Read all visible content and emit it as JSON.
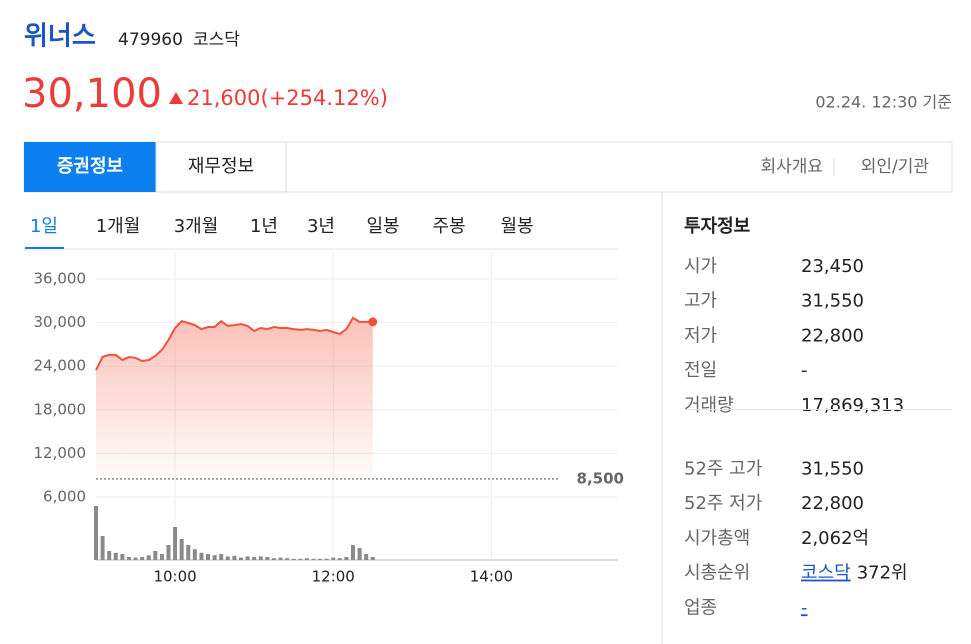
{
  "header": {
    "name": "위너스",
    "code": "479960",
    "market": "코스닥"
  },
  "price": {
    "current": "30,100",
    "change": "21,600(+254.12%)",
    "timestamp": "02.24. 12:30 기준"
  },
  "tabs": [
    "증권정보",
    "재무정보"
  ],
  "links": [
    "회사개요",
    "외인/기관"
  ],
  "period_tabs": {
    "items": [
      "1일",
      "1개월",
      "3개월",
      "1년",
      "3년",
      "일봉",
      "주봉",
      "월봉"
    ],
    "active": 0
  },
  "chart_data": {
    "type": "line",
    "color": "#f0533b",
    "x": [
      "09:00",
      "09:05",
      "09:10",
      "09:15",
      "09:20",
      "09:25",
      "09:30",
      "09:35",
      "09:40",
      "09:45",
      "09:50",
      "09:55",
      "10:00",
      "10:05",
      "10:10",
      "10:15",
      "10:20",
      "10:25",
      "10:30",
      "10:35",
      "10:40",
      "10:45",
      "10:50",
      "10:55",
      "11:00",
      "11:05",
      "11:10",
      "11:15",
      "11:20",
      "11:25",
      "11:30",
      "11:35",
      "11:40",
      "11:45",
      "11:50",
      "11:55",
      "12:00",
      "12:05",
      "12:10",
      "12:15",
      "12:20",
      "12:25",
      "12:30"
    ],
    "values": [
      23450,
      25300,
      25550,
      25550,
      24850,
      25250,
      25150,
      24700,
      24850,
      25400,
      26250,
      27600,
      29250,
      30200,
      29950,
      29650,
      29100,
      29400,
      29400,
      30200,
      29550,
      29650,
      29800,
      29550,
      28850,
      29250,
      29100,
      29400,
      29250,
      29250,
      29100,
      29000,
      29100,
      29000,
      28850,
      29000,
      28700,
      28450,
      29100,
      30650,
      30100,
      30100,
      30100
    ],
    "volume": [
      90,
      40,
      15,
      12,
      10,
      5,
      4,
      5,
      8,
      15,
      10,
      25,
      55,
      35,
      25,
      18,
      12,
      10,
      8,
      10,
      6,
      7,
      4,
      6,
      5,
      6,
      5,
      3,
      4,
      3,
      2,
      2,
      3,
      2,
      2,
      2,
      4,
      3,
      5,
      25,
      20,
      10,
      5
    ],
    "volume_ylim": [
      0,
      100
    ],
    "xlim": [
      "09:00",
      "15:30"
    ],
    "xticks": [
      "10:00",
      "12:00",
      "14:00"
    ],
    "ylim": [
      6000,
      36000
    ],
    "yticks": [
      {
        "value": 6000,
        "label": "6,000"
      },
      {
        "value": 12000,
        "label": "12,000"
      },
      {
        "value": 18000,
        "label": "18,000"
      },
      {
        "value": 24000,
        "label": "24,000"
      },
      {
        "value": 30000,
        "label": "30,000"
      },
      {
        "value": 36000,
        "label": "36,000"
      }
    ],
    "reference": {
      "value": 8500,
      "label": "8,500"
    },
    "grid": true
  },
  "info": {
    "title": "투자정보",
    "groups": [
      [
        {
          "label": "시가",
          "value": "23,450"
        },
        {
          "label": "고가",
          "value": "31,550"
        },
        {
          "label": "저가",
          "value": "22,800"
        },
        {
          "label": "전일",
          "value": "-"
        },
        {
          "label": "거래량",
          "value": "17,869,313"
        }
      ],
      [
        {
          "label": "52주 고가",
          "value": "31,550"
        },
        {
          "label": "52주 저가",
          "value": "22,800"
        },
        {
          "label": "시가총액",
          "value": "2,062억"
        },
        {
          "label": "시총순위",
          "value_link": "코스닥",
          "value": "372위"
        },
        {
          "label": "업종",
          "value_link": "-"
        }
      ]
    ]
  }
}
